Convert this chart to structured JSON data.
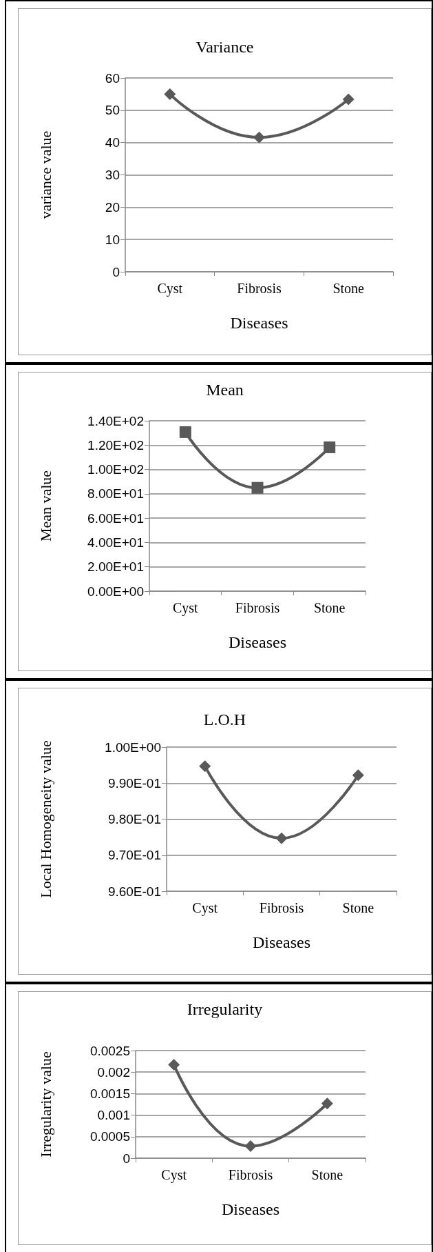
{
  "chart_data": [
    {
      "type": "line",
      "title": "Variance",
      "xlabel": "Diseases",
      "ylabel": "variance value",
      "categories": [
        "Cyst",
        "Fibrosis",
        "Stone"
      ],
      "series": [
        {
          "color": "#595959",
          "values": [
            55.0,
            41.6,
            53.4
          ]
        }
      ],
      "ylim": [
        0,
        60
      ],
      "yticks": [
        0,
        10,
        20,
        30,
        40,
        50,
        60
      ],
      "grid": "y",
      "marker": "diamond",
      "line_style": "solid"
    },
    {
      "type": "line",
      "title": "Mean",
      "xlabel": "Diseases",
      "ylabel": "Mean value",
      "categories": [
        "Cyst",
        "Fibrosis",
        "Stone"
      ],
      "series": [
        {
          "color": "#595959",
          "values": [
            130.7,
            84.9,
            118.2
          ]
        }
      ],
      "ylim": [
        0,
        140
      ],
      "yticks": [
        {
          "value": 0,
          "label": "0.00E+00"
        },
        {
          "value": 20,
          "label": "2.00E+01"
        },
        {
          "value": 40,
          "label": "4.00E+01"
        },
        {
          "value": 60,
          "label": "6.00E+01"
        },
        {
          "value": 80,
          "label": "8.00E+01"
        },
        {
          "value": 100,
          "label": "1.00E+02"
        },
        {
          "value": 120,
          "label": "1.20E+02"
        },
        {
          "value": 140,
          "label": "1.40E+02"
        }
      ],
      "grid": "y",
      "marker": "square",
      "line_style": "solid"
    },
    {
      "type": "line",
      "title": "L.O.H",
      "xlabel": "Diseases",
      "ylabel": "Local Homogeneity value",
      "categories": [
        "Cyst",
        "Fibrosis",
        "Stone"
      ],
      "series": [
        {
          "color": "#595959",
          "values": [
            0.9947,
            0.9747,
            0.9922
          ]
        }
      ],
      "ylim": [
        0.96,
        1.0
      ],
      "yticks": [
        {
          "value": 0.96,
          "label": "9.60E-01"
        },
        {
          "value": 0.97,
          "label": "9.70E-01"
        },
        {
          "value": 0.98,
          "label": "9.80E-01"
        },
        {
          "value": 0.99,
          "label": "9.90E-01"
        },
        {
          "value": 1.0,
          "label": "1.00E+00"
        }
      ],
      "grid": "y",
      "marker": "diamond",
      "line_style": "solid"
    },
    {
      "type": "line",
      "title": "Irregularity",
      "xlabel": "Diseases",
      "ylabel": "Irregularity value",
      "categories": [
        "Cyst",
        "Fibrosis",
        "Stone"
      ],
      "series": [
        {
          "color": "#595959",
          "values": [
            0.00217,
            0.00028,
            0.00127
          ]
        }
      ],
      "ylim": [
        0,
        0.0025
      ],
      "yticks": [
        0,
        0.0005,
        0.001,
        0.0015,
        0.002,
        0.0025
      ],
      "grid": "y",
      "marker": "diamond",
      "line_style": "solid"
    }
  ]
}
